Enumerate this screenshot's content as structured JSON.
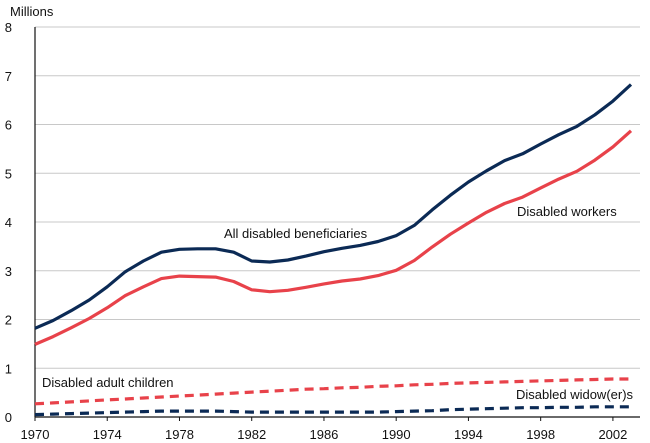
{
  "chart_data": {
    "type": "line",
    "title": "",
    "ylabel": "Millions",
    "xlabel": "",
    "ylim": [
      0,
      8
    ],
    "xlim": [
      1970,
      2003.5
    ],
    "grid": "horizontal",
    "x_ticks": [
      "1970",
      "1974",
      "1978",
      "1982",
      "1986",
      "1990",
      "1994",
      "1998",
      "2002"
    ],
    "y_ticks": [
      "0",
      "1",
      "2",
      "3",
      "4",
      "5",
      "6",
      "7",
      "8"
    ],
    "x": [
      1970,
      1971,
      1972,
      1973,
      1974,
      1975,
      1976,
      1977,
      1978,
      1979,
      1980,
      1981,
      1982,
      1983,
      1984,
      1985,
      1986,
      1987,
      1988,
      1989,
      1990,
      1991,
      1992,
      1993,
      1994,
      1995,
      1996,
      1997,
      1998,
      1999,
      2000,
      2001,
      2002,
      2003
    ],
    "series": [
      {
        "name": "All disabled beneficiaries",
        "label": "All disabled beneficiaries",
        "color": "#0b2a55",
        "style": "solid",
        "values": [
          1.82,
          1.98,
          2.18,
          2.4,
          2.67,
          2.98,
          3.2,
          3.38,
          3.44,
          3.45,
          3.45,
          3.38,
          3.2,
          3.18,
          3.22,
          3.3,
          3.39,
          3.46,
          3.52,
          3.6,
          3.72,
          3.93,
          4.25,
          4.55,
          4.82,
          5.05,
          5.26,
          5.4,
          5.6,
          5.79,
          5.96,
          6.2,
          6.48,
          6.82
        ]
      },
      {
        "name": "Disabled workers",
        "label": "Disabled workers",
        "color": "#e8424a",
        "style": "solid",
        "values": [
          1.49,
          1.65,
          1.83,
          2.02,
          2.24,
          2.49,
          2.67,
          2.84,
          2.89,
          2.88,
          2.87,
          2.78,
          2.61,
          2.57,
          2.6,
          2.66,
          2.73,
          2.79,
          2.83,
          2.9,
          3.01,
          3.21,
          3.49,
          3.75,
          3.98,
          4.2,
          4.38,
          4.51,
          4.7,
          4.88,
          5.04,
          5.27,
          5.54,
          5.87
        ]
      },
      {
        "name": "Disabled adult children",
        "label": "Disabled adult children",
        "color": "#e8424a",
        "style": "dashed",
        "values": [
          0.27,
          0.29,
          0.31,
          0.33,
          0.35,
          0.37,
          0.39,
          0.41,
          0.43,
          0.45,
          0.47,
          0.49,
          0.51,
          0.53,
          0.55,
          0.57,
          0.58,
          0.6,
          0.61,
          0.63,
          0.64,
          0.66,
          0.67,
          0.69,
          0.7,
          0.71,
          0.72,
          0.73,
          0.74,
          0.75,
          0.76,
          0.77,
          0.78,
          0.78
        ]
      },
      {
        "name": "Disabled widow(er)s",
        "label": "Disabled widow(er)s",
        "color": "#0b2a55",
        "style": "dashed",
        "values": [
          0.05,
          0.06,
          0.07,
          0.08,
          0.09,
          0.1,
          0.11,
          0.12,
          0.12,
          0.12,
          0.12,
          0.11,
          0.1,
          0.1,
          0.1,
          0.1,
          0.1,
          0.1,
          0.1,
          0.1,
          0.11,
          0.12,
          0.13,
          0.15,
          0.16,
          0.17,
          0.18,
          0.19,
          0.19,
          0.2,
          0.2,
          0.21,
          0.21,
          0.21
        ]
      }
    ]
  }
}
